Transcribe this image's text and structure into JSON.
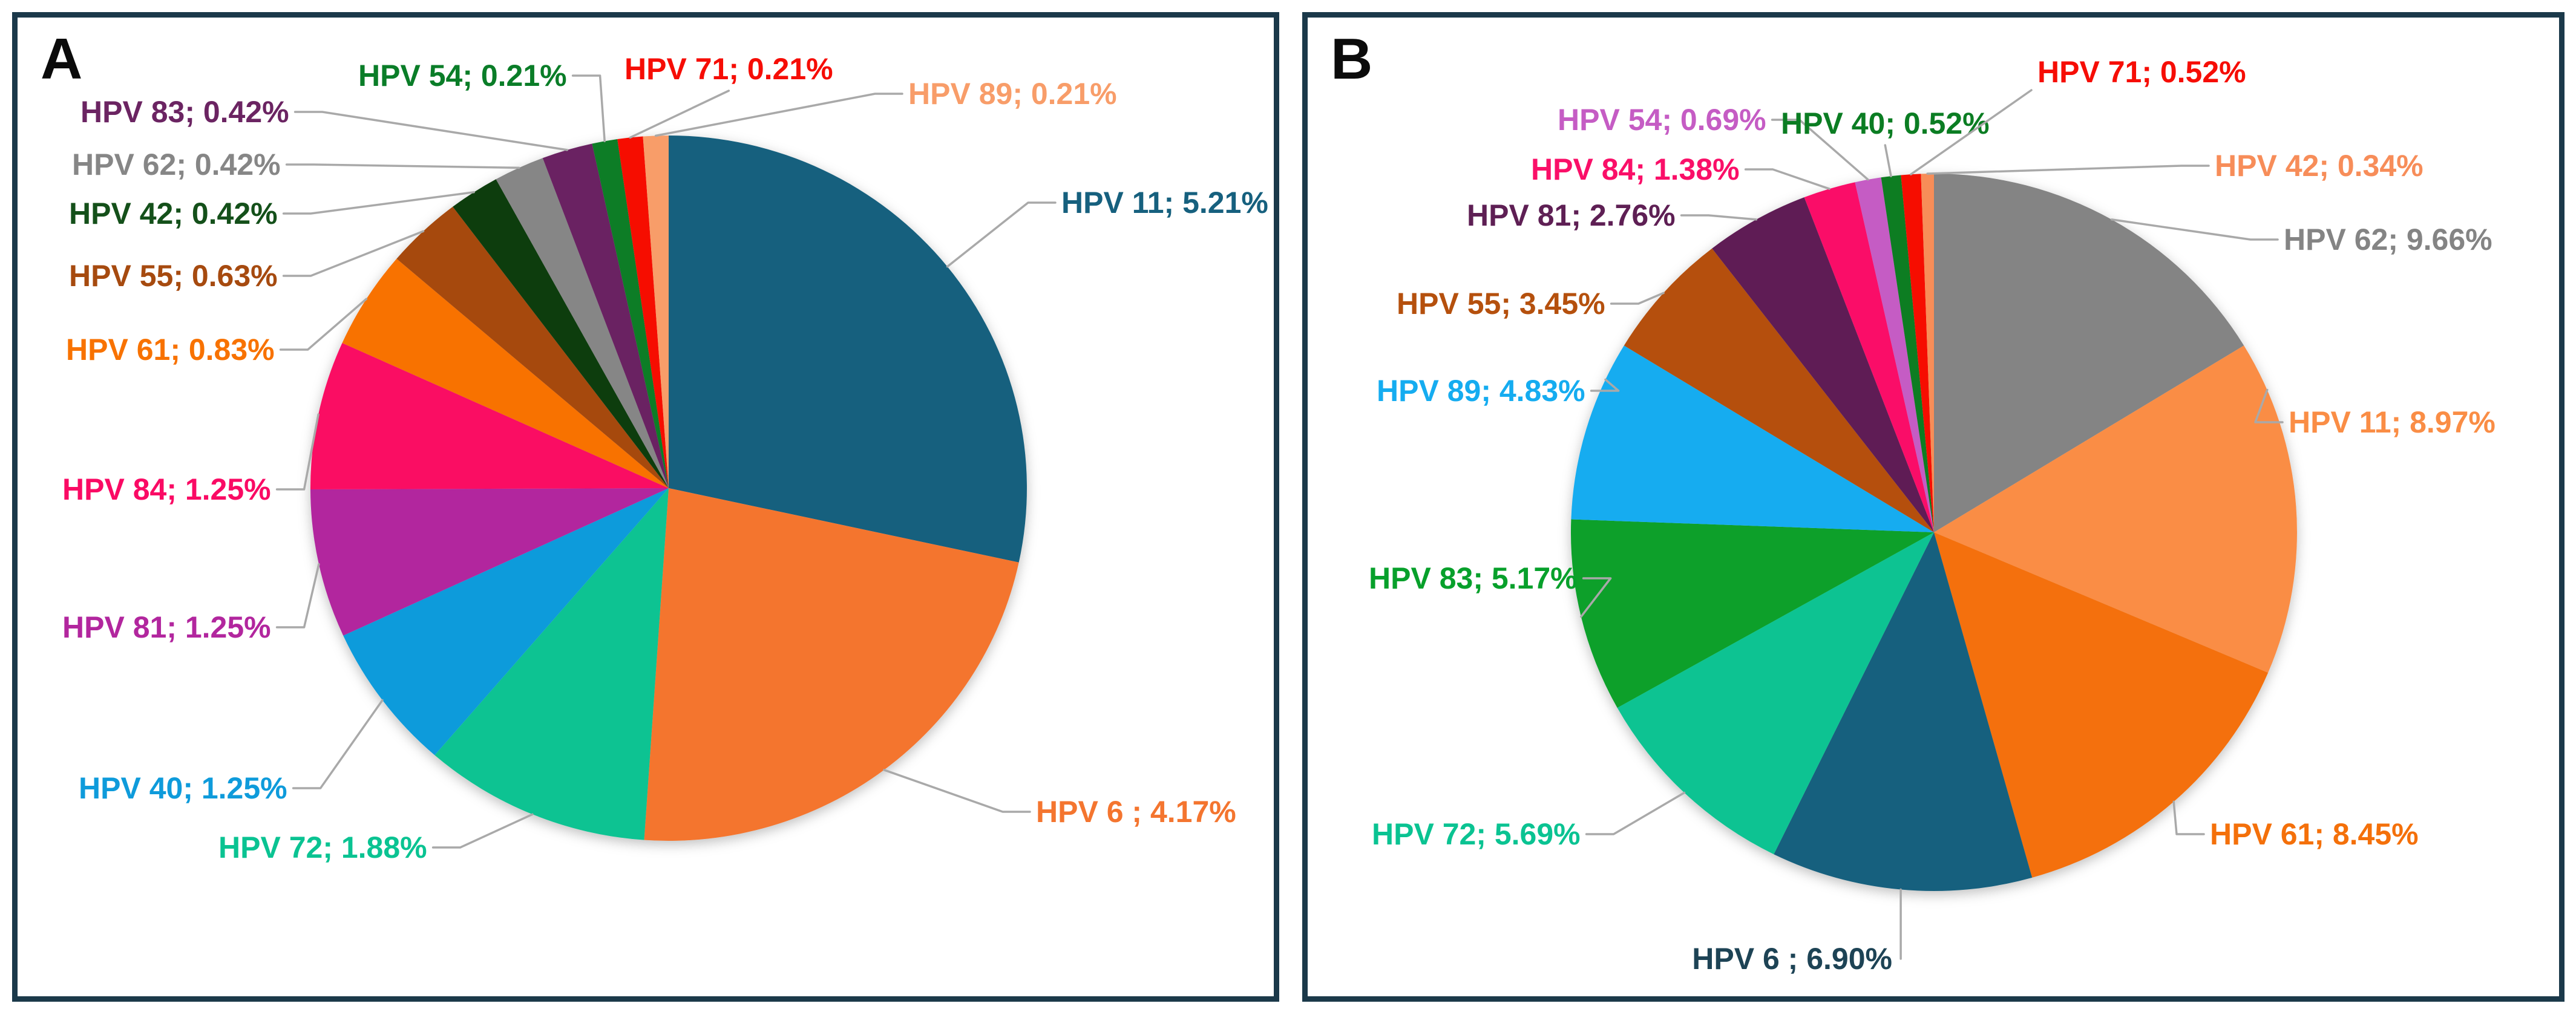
{
  "chart_data": [
    {
      "type": "pie",
      "panel": "A",
      "direction": "clockwise",
      "start_angle_deg": 0,
      "legend_position": "none",
      "slices": [
        {
          "label": "HPV 11",
          "value_pct": 5.21,
          "display": "HPV 11; 5.21%",
          "color": "#16607E"
        },
        {
          "label": "HPV 6",
          "value_pct": 4.17,
          "display": "HPV 6 ; 4.17%",
          "color": "#F4752F"
        },
        {
          "label": "HPV 72",
          "value_pct": 1.88,
          "display": "HPV 72; 1.88%",
          "color": "#0AC392"
        },
        {
          "label": "HPV 40",
          "value_pct": 1.25,
          "display": "HPV 40; 1.25%",
          "color": "#0E9BDB"
        },
        {
          "label": "HPV 81",
          "value_pct": 1.25,
          "display": "HPV 81; 1.25%",
          "color": "#B2269E"
        },
        {
          "label": "HPV 84",
          "value_pct": 1.25,
          "display": "HPV 84; 1.25%",
          "color": "#FA0A64"
        },
        {
          "label": "HPV 61",
          "value_pct": 0.83,
          "display": "HPV 61; 0.83%",
          "color": "#F87200"
        },
        {
          "label": "HPV 55",
          "value_pct": 0.63,
          "display": "HPV 55; 0.63%",
          "color": "#A64A0F"
        },
        {
          "label": "HPV 42",
          "value_pct": 0.42,
          "display": "HPV 42; 0.42%",
          "color": "#0E3D10",
          "label_color": "#14501A"
        },
        {
          "label": "HPV 62",
          "value_pct": 0.42,
          "display": "HPV 62; 0.42%",
          "color": "#868686"
        },
        {
          "label": "HPV 83",
          "value_pct": 0.42,
          "display": "HPV 83; 0.42%",
          "color": "#6B2462"
        },
        {
          "label": "HPV 54",
          "value_pct": 0.21,
          "display": "HPV 54; 0.21%",
          "color": "#0A7D28"
        },
        {
          "label": "HPV 71",
          "value_pct": 0.21,
          "display": "HPV 71; 0.21%",
          "color": "#F60D05"
        },
        {
          "label": "HPV 89",
          "value_pct": 0.21,
          "display": "HPV 89; 0.21%",
          "color": "#F89D69"
        }
      ]
    },
    {
      "type": "pie",
      "panel": "B",
      "direction": "clockwise",
      "start_angle_deg": 0,
      "legend_position": "none",
      "slices": [
        {
          "label": "HPV 62",
          "value_pct": 9.66,
          "display": "HPV 62; 9.66%",
          "color": "#848484"
        },
        {
          "label": "HPV 11",
          "value_pct": 8.97,
          "display": "HPV 11; 8.97%",
          "color": "#FA8D45"
        },
        {
          "label": "HPV 61",
          "value_pct": 8.45,
          "display": "HPV 61; 8.45%",
          "color": "#F4700A"
        },
        {
          "label": "HPV 6",
          "value_pct": 6.9,
          "display": "HPV 6 ; 6.90%",
          "color": "#16607E",
          "label_color": "#1D4355"
        },
        {
          "label": "HPV 72",
          "value_pct": 5.69,
          "display": "HPV 72; 5.69%",
          "color": "#0AC392"
        },
        {
          "label": "HPV 83",
          "value_pct": 5.17,
          "display": "HPV 83; 5.17%",
          "color": "#07A02B"
        },
        {
          "label": "HPV 89",
          "value_pct": 4.83,
          "display": "HPV 89; 4.83%",
          "color": "#15ACF0"
        },
        {
          "label": "HPV 55",
          "value_pct": 3.45,
          "display": "HPV 55; 3.45%",
          "color": "#B5500D"
        },
        {
          "label": "HPV 81",
          "value_pct": 2.76,
          "display": "HPV 81; 2.76%",
          "color": "#5E1F54"
        },
        {
          "label": "HPV 84",
          "value_pct": 1.38,
          "display": "HPV 84; 1.38%",
          "color": "#FA0F68"
        },
        {
          "label": "HPV 54",
          "value_pct": 0.69,
          "display": "HPV 54; 0.69%",
          "color": "#C55CC4"
        },
        {
          "label": "HPV 40",
          "value_pct": 0.52,
          "display": "HPV 40; 0.52%",
          "color": "#0B7D23"
        },
        {
          "label": "HPV 71",
          "value_pct": 0.52,
          "display": "HPV 71; 0.52%",
          "color": "#F60D05"
        },
        {
          "label": "HPV 42",
          "value_pct": 0.34,
          "display": "HPV 42; 0.34%",
          "color": "#F78D59"
        }
      ]
    }
  ]
}
